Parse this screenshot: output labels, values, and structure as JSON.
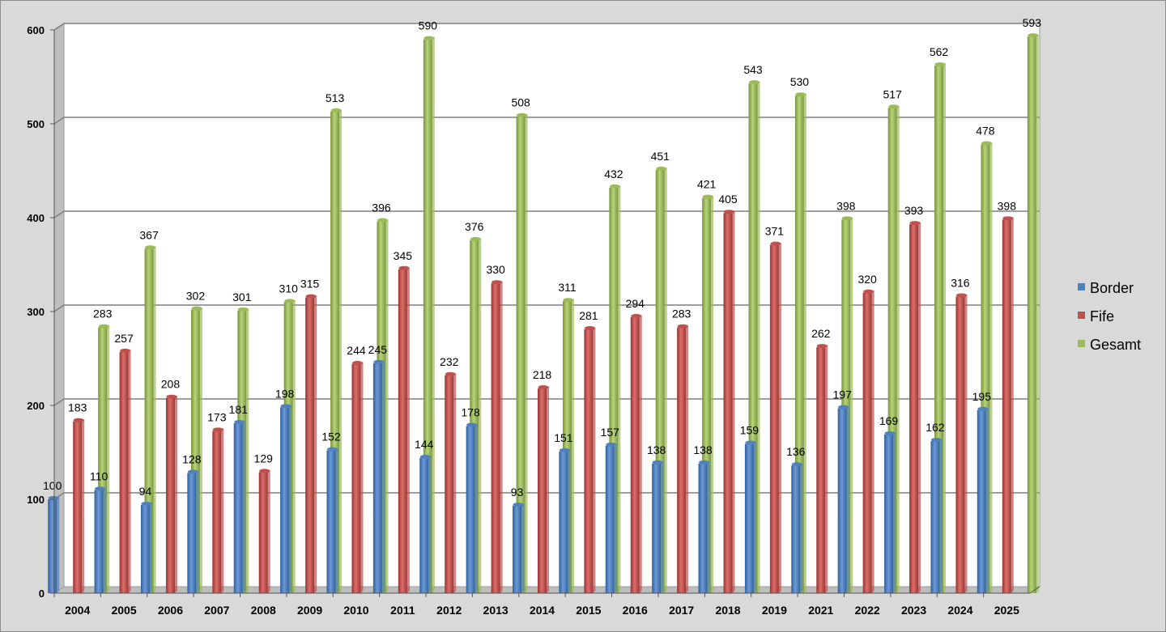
{
  "chart_data": {
    "type": "bar",
    "title": "",
    "xlabel": "",
    "ylabel": "",
    "ylim": [
      0,
      600
    ],
    "yticks": [
      0,
      100,
      200,
      300,
      400,
      500,
      600
    ],
    "grid": true,
    "legend": "right",
    "categories": [
      "2004",
      "2005",
      "2006",
      "2007",
      "2008",
      "2009",
      "2010",
      "2011",
      "2012",
      "2013",
      "2014",
      "2015",
      "2016",
      "2017",
      "2018",
      "2019",
      "2021",
      "2022",
      "2023",
      "2024",
      "2025"
    ],
    "series": [
      {
        "name": "Border",
        "color": "#4f81bd",
        "values": [
          100,
          110,
          94,
          128,
          181,
          198,
          152,
          245,
          144,
          178,
          93,
          151,
          157,
          138,
          138,
          159,
          136,
          197,
          169,
          162,
          195
        ]
      },
      {
        "name": "Fife",
        "color": "#c0504d",
        "values": [
          183,
          257,
          208,
          173,
          129,
          315,
          244,
          345,
          232,
          330,
          218,
          281,
          294,
          283,
          405,
          371,
          262,
          320,
          393,
          316,
          398
        ]
      },
      {
        "name": "Gesamt",
        "color": "#9bbb59",
        "values": [
          283,
          367,
          302,
          301,
          310,
          513,
          396,
          590,
          376,
          508,
          311,
          432,
          451,
          421,
          543,
          530,
          398,
          517,
          562,
          478,
          593
        ]
      }
    ]
  }
}
